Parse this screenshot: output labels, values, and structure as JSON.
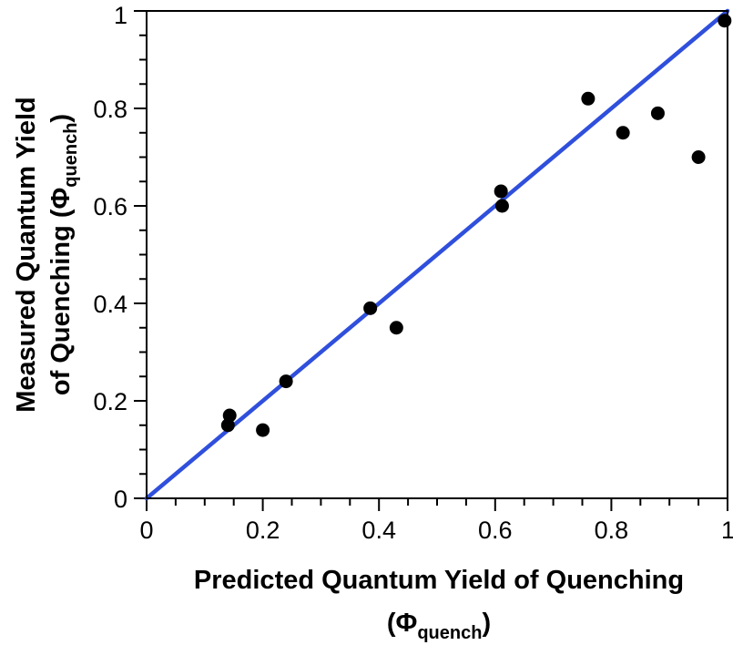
{
  "chart_data": {
    "type": "scatter",
    "xlabel": "Predicted Quantum Yield of Quenching",
    "xlabel_symbol": "(Φ",
    "xlabel_subscript": "quench",
    "xlabel_close": ")",
    "ylabel_line1": "Measured Quantum Yield",
    "ylabel_line2_prefix": "of Quenching (Φ",
    "ylabel_subscript": "quench",
    "ylabel_close": ")",
    "xlim": [
      0,
      1
    ],
    "ylim": [
      0,
      1
    ],
    "x_ticks": [
      0,
      0.2,
      0.4,
      0.6,
      0.8,
      1
    ],
    "x_tick_labels": [
      "0",
      "0.2",
      "0.4",
      "0.6",
      "0.8",
      "1"
    ],
    "y_ticks": [
      0,
      0.2,
      0.4,
      0.6,
      0.8,
      1
    ],
    "y_tick_labels": [
      "0",
      "0.2",
      "0.4",
      "0.6",
      "0.8",
      "1"
    ],
    "grid": false,
    "series": [
      {
        "points": [
          {
            "x": 0.14,
            "y": 0.15
          },
          {
            "x": 0.143,
            "y": 0.17
          },
          {
            "x": 0.2,
            "y": 0.14
          },
          {
            "x": 0.24,
            "y": 0.24
          },
          {
            "x": 0.385,
            "y": 0.39
          },
          {
            "x": 0.43,
            "y": 0.35
          },
          {
            "x": 0.61,
            "y": 0.63
          },
          {
            "x": 0.612,
            "y": 0.6
          },
          {
            "x": 0.76,
            "y": 0.82
          },
          {
            "x": 0.82,
            "y": 0.75
          },
          {
            "x": 0.88,
            "y": 0.79
          },
          {
            "x": 0.95,
            "y": 0.7
          },
          {
            "x": 0.995,
            "y": 0.98
          }
        ],
        "color": "#000000"
      }
    ],
    "reference_line": {
      "from": [
        0,
        0
      ],
      "to": [
        1,
        1
      ],
      "color": "#2f4fdc"
    }
  }
}
